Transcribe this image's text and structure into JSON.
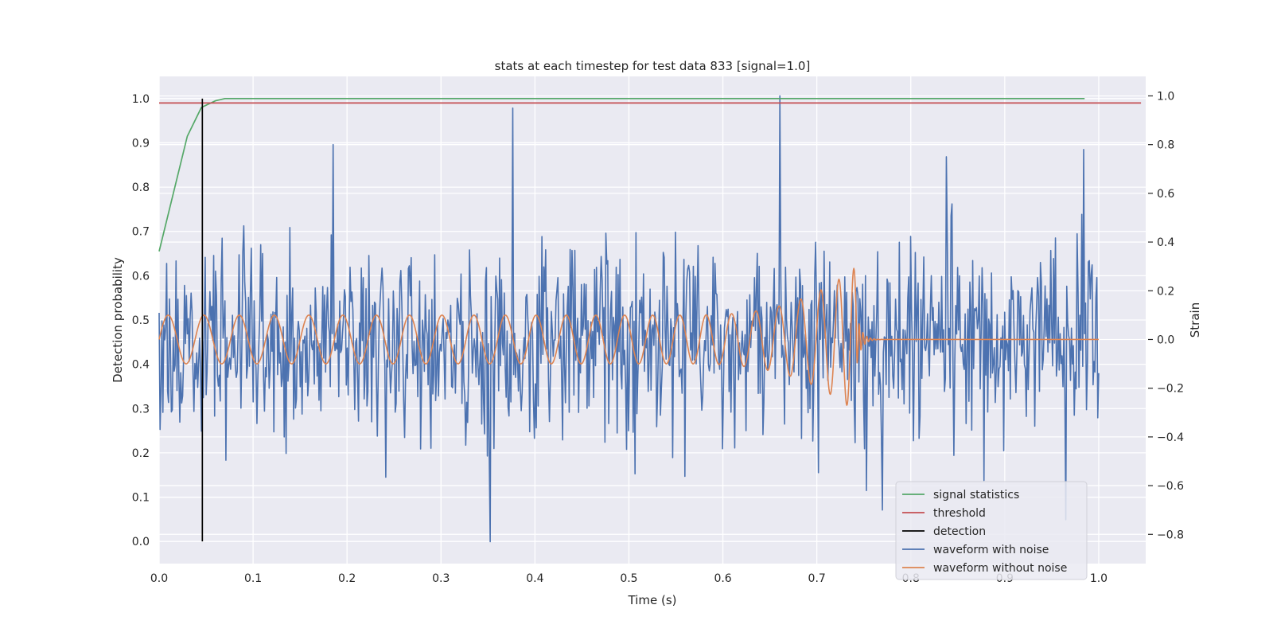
{
  "chart_data": {
    "type": "line",
    "title": "stats at each timestep for test data 833 [signal=1.0]",
    "xlabel": "Time (s)",
    "ylabel_left": "Detection probability",
    "ylabel_right": "Strain",
    "xlim": [
      0.0,
      1.05
    ],
    "ylim_left": [
      -0.05,
      1.05
    ],
    "ylim_right": [
      -0.92,
      1.08
    ],
    "x_ticks": [
      "0.0",
      "0.1",
      "0.2",
      "0.3",
      "0.4",
      "0.5",
      "0.6",
      "0.7",
      "0.8",
      "0.9",
      "1.0"
    ],
    "y_ticks_left": [
      "0.0",
      "0.1",
      "0.2",
      "0.3",
      "0.4",
      "0.5",
      "0.6",
      "0.7",
      "0.8",
      "0.9",
      "1.0"
    ],
    "y_ticks_right": [
      "−0.8",
      "−0.6",
      "−0.4",
      "−0.2",
      "0.0",
      "0.2",
      "0.4",
      "0.6",
      "0.8",
      "1.0"
    ],
    "grid": true,
    "legend_position": "lower-right",
    "series": [
      {
        "name": "signal statistics",
        "axis": "left",
        "color": "#55a868",
        "x": [
          0.0,
          0.03,
          0.045,
          0.06,
          0.07,
          0.1,
          0.3,
          0.5,
          0.7,
          0.9,
          0.985
        ],
        "y": [
          0.655,
          0.915,
          0.98,
          0.995,
          1.0,
          1.0,
          1.0,
          1.0,
          1.0,
          1.0,
          1.0
        ]
      },
      {
        "name": "threshold",
        "axis": "left",
        "color": "#c44e52",
        "x": [
          0.0,
          1.045
        ],
        "y": [
          0.99,
          0.99
        ]
      },
      {
        "name": "detection",
        "axis": "left",
        "color": "#000000",
        "x": [
          0.046,
          0.046
        ],
        "y": [
          0.0,
          1.0
        ]
      },
      {
        "name": "waveform with noise",
        "axis": "right",
        "color": "#4c72b0",
        "x_range": [
          0.0,
          1.0
        ],
        "points": 1000,
        "amplitude_std": 0.2,
        "extremes": [
          {
            "x": 0.352,
            "y": -0.83
          },
          {
            "x": 0.376,
            "y": 0.95
          },
          {
            "x": 0.661,
            "y": 1.0
          },
          {
            "x": 0.984,
            "y": 0.78
          },
          {
            "x": 0.838,
            "y": 0.75
          },
          {
            "x": 0.185,
            "y": 0.8
          },
          {
            "x": 0.77,
            "y": -0.7
          },
          {
            "x": 0.965,
            "y": -0.74
          }
        ]
      },
      {
        "name": "waveform without noise",
        "axis": "right",
        "color": "#dd8452",
        "x_range": [
          0.0,
          1.0
        ],
        "points": 2000,
        "chirp_end": 0.742,
        "start_amplitude": 0.1,
        "peak_amplitude": 0.3
      }
    ]
  }
}
